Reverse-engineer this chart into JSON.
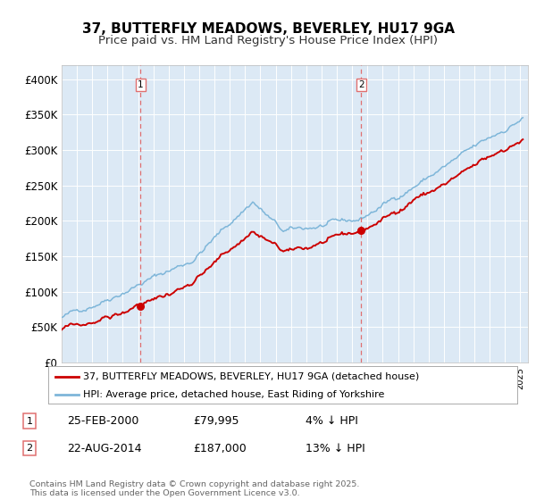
{
  "title": "37, BUTTERFLY MEADOWS, BEVERLEY, HU17 9GA",
  "subtitle": "Price paid vs. HM Land Registry's House Price Index (HPI)",
  "bg_color": "#dce9f5",
  "outer_bg": "#ffffff",
  "red_line_color": "#cc0000",
  "blue_line_color": "#7eb6d9",
  "dashed_line_color": "#e07070",
  "marker1_month": 62,
  "marker2_month": 235,
  "marker1_price": 79995,
  "marker2_price": 187000,
  "sale1_label": "1",
  "sale2_label": "2",
  "sale1_date": "25-FEB-2000",
  "sale2_date": "22-AUG-2014",
  "sale1_pct": "4% ↓ HPI",
  "sale2_pct": "13% ↓ HPI",
  "legend_line1": "37, BUTTERFLY MEADOWS, BEVERLEY, HU17 9GA (detached house)",
  "legend_line2": "HPI: Average price, detached house, East Riding of Yorkshire",
  "footer": "Contains HM Land Registry data © Crown copyright and database right 2025.\nThis data is licensed under the Open Government Licence v3.0.",
  "ylim": [
    0,
    420000
  ],
  "yticks": [
    0,
    50000,
    100000,
    150000,
    200000,
    250000,
    300000,
    350000,
    400000
  ],
  "ytick_labels": [
    "£0",
    "£50K",
    "£100K",
    "£150K",
    "£200K",
    "£250K",
    "£300K",
    "£350K",
    "£400K"
  ],
  "title_fontsize": 11,
  "subtitle_fontsize": 9.5,
  "tick_fontsize": 8.5
}
